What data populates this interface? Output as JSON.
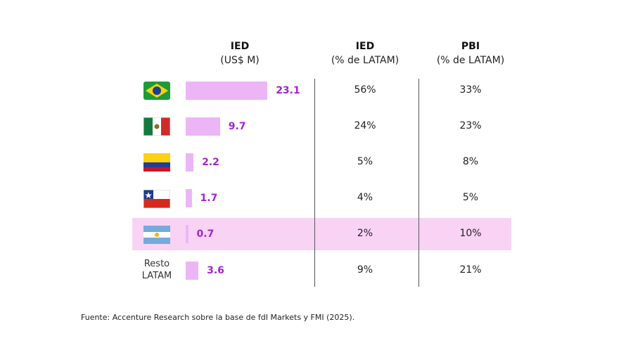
{
  "chart_data": {
    "type": "bar",
    "orientation": "horizontal",
    "columns": [
      {
        "title": "IED",
        "subtitle": "(US$ M)"
      },
      {
        "title": "IED",
        "subtitle": "(% de LATAM)"
      },
      {
        "title": "PBI",
        "subtitle": "(% de LATAM)"
      }
    ],
    "categories": [
      null,
      null,
      null,
      null,
      null,
      "Resto LATAM"
    ],
    "values": [
      23.1,
      9.7,
      2.2,
      1.7,
      0.7,
      3.6
    ],
    "color": "#ecb6f6",
    "label_color": "#a324cf",
    "highlight_row": 4,
    "highlight_color": "#f8d3f4",
    "table": {
      "ied_share": [
        "56%",
        "24%",
        "5%",
        "4%",
        "2%",
        "9%"
      ],
      "pbi_share": [
        "33%",
        "23%",
        "8%",
        "5%",
        "10%",
        "21%"
      ]
    },
    "source": "Fuente: Accenture Research sobre la base de fdI Markets y FMI (2025)."
  }
}
